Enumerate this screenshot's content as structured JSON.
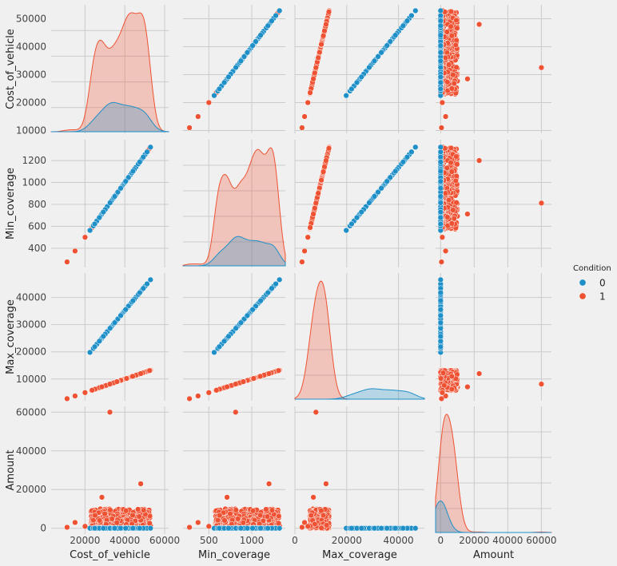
{
  "chart_data": {
    "type": "scatter",
    "kind": "pairplot",
    "variables": [
      "Cost_of_vehicle",
      "Min_coverage",
      "Max_coverage",
      "Amount"
    ],
    "hue": "Condition",
    "legend": {
      "title": "Condition",
      "placement": "right",
      "entries": [
        {
          "label": "0",
          "color": "#1f8fc8"
        },
        {
          "label": "1",
          "color": "#ef5233"
        }
      ]
    },
    "axes": {
      "Cost_of_vehicle": {
        "range": [
          3000,
          62000
        ],
        "ticks": [
          20000,
          40000,
          60000
        ],
        "tick_labels": [
          "20000",
          "40000",
          "60000"
        ],
        "ylabel_ticks": [
          10000,
          20000,
          30000,
          40000,
          50000
        ],
        "ylabel_tick_labels": [
          "10000",
          "20000",
          "30000",
          "40000",
          "50000"
        ],
        "yrange": [
          9000,
          55000
        ]
      },
      "Min_coverage": {
        "range": [
          200,
          1390
        ],
        "ticks": [
          500,
          1000
        ],
        "tick_labels": [
          "500",
          "1000"
        ],
        "ylabel_ticks": [
          400,
          600,
          800,
          1000,
          1200
        ],
        "ylabel_tick_labels": [
          "400",
          "600",
          "800",
          "1000",
          "1200"
        ],
        "yrange": [
          225,
          1390
        ]
      },
      "Max_coverage": {
        "range": [
          0,
          50000
        ],
        "ticks": [
          0,
          20000,
          40000
        ],
        "tick_labels": [
          "0",
          "20000",
          "40000"
        ],
        "ylabel_ticks": [
          10000,
          20000,
          30000,
          40000
        ],
        "ylabel_tick_labels": [
          "10000",
          "20000",
          "30000",
          "40000"
        ],
        "yrange": [
          2000,
          49000
        ]
      },
      "Amount": {
        "range": [
          -3000,
          66000
        ],
        "ticks": [
          0,
          20000,
          40000,
          60000
        ],
        "tick_labels": [
          "0",
          "20000",
          "40000",
          "60000"
        ],
        "ylabel_ticks": [
          0,
          20000,
          40000,
          60000
        ],
        "ylabel_tick_labels": [
          "0",
          "20000",
          "40000",
          "60000"
        ],
        "yrange": [
          -3000,
          63000
        ]
      }
    },
    "relationships": {
      "condition_0": {
        "min_coverage_per_cost": 0.025,
        "max_coverage_per_cost": 0.88,
        "amount": 0,
        "cost_range": [
          22500,
          53000
        ]
      },
      "condition_1": {
        "min_coverage_per_cost": 0.025,
        "max_coverage_per_cost": 0.25,
        "amount_range": [
          0,
          10000
        ],
        "cost_range": [
          11000,
          53000
        ]
      }
    },
    "outliers_condition_1": [
      {
        "Cost_of_vehicle": 32500,
        "Min_coverage": 812,
        "Max_coverage": 8125,
        "Amount": 60000
      },
      {
        "Cost_of_vehicle": 48000,
        "Min_coverage": 1200,
        "Max_coverage": 12000,
        "Amount": 23000
      },
      {
        "Cost_of_vehicle": 28500,
        "Min_coverage": 712,
        "Max_coverage": 7125,
        "Amount": 16000
      },
      {
        "Cost_of_vehicle": 15000,
        "Min_coverage": 375,
        "Max_coverage": 3750,
        "Amount": 3000
      },
      {
        "Cost_of_vehicle": 11000,
        "Min_coverage": 275,
        "Max_coverage": 2750,
        "Amount": 500
      },
      {
        "Cost_of_vehicle": 20000,
        "Min_coverage": 500,
        "Max_coverage": 5000,
        "Amount": 1000
      }
    ],
    "diagonal": "kde",
    "grid": true
  }
}
